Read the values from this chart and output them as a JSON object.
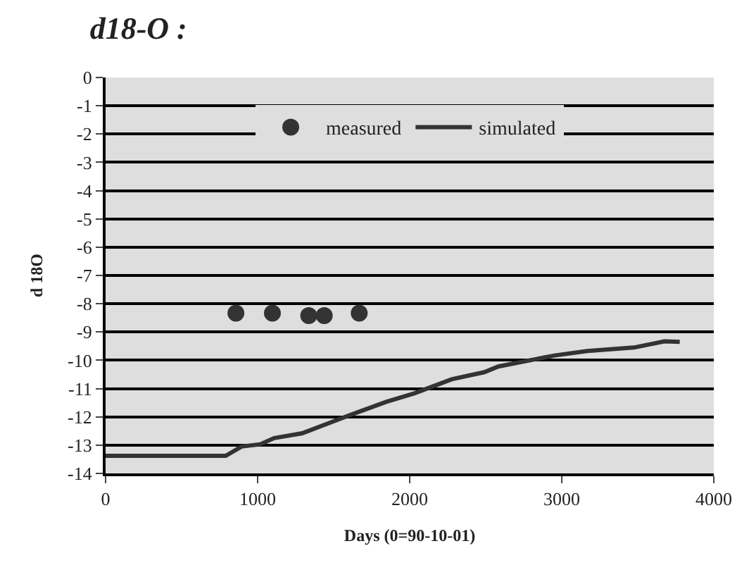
{
  "chart_data": {
    "type": "scatter",
    "title": "d18-O :",
    "xlabel": "Days (0=90-10-01)",
    "ylabel": "d 18O",
    "xlim": [
      0,
      4000
    ],
    "xticks": [
      0,
      1000,
      2000,
      3000,
      4000
    ],
    "ylim": [
      -14,
      0
    ],
    "yticks": [
      0,
      -1,
      -2,
      -3,
      -4,
      -5,
      -6,
      -7,
      -8,
      -9,
      -10,
      -11,
      -12,
      -13,
      -14
    ],
    "grid": "y",
    "legend": "top",
    "series": [
      {
        "name": "measured",
        "marker": "circle",
        "color": "#333333",
        "x": [
          857,
          1097,
          1336,
          1438,
          1668
        ],
        "values": [
          -8.33,
          -8.33,
          -8.42,
          -8.42,
          -8.33
        ]
      },
      {
        "name": "simulated",
        "type": "line",
        "marker": "none",
        "color": "#333333",
        "x": [
          0,
          400,
          790,
          894,
          1017,
          1109,
          1293,
          1600,
          1846,
          2030,
          2276,
          2491,
          2583,
          2952,
          3167,
          3474,
          3675,
          3776
        ],
        "values": [
          -13.38,
          -13.38,
          -13.38,
          -13.05,
          -12.97,
          -12.75,
          -12.58,
          -11.95,
          -11.47,
          -11.17,
          -10.67,
          -10.42,
          -10.22,
          -9.83,
          -9.67,
          -9.55,
          -9.33,
          -9.35
        ]
      }
    ]
  }
}
